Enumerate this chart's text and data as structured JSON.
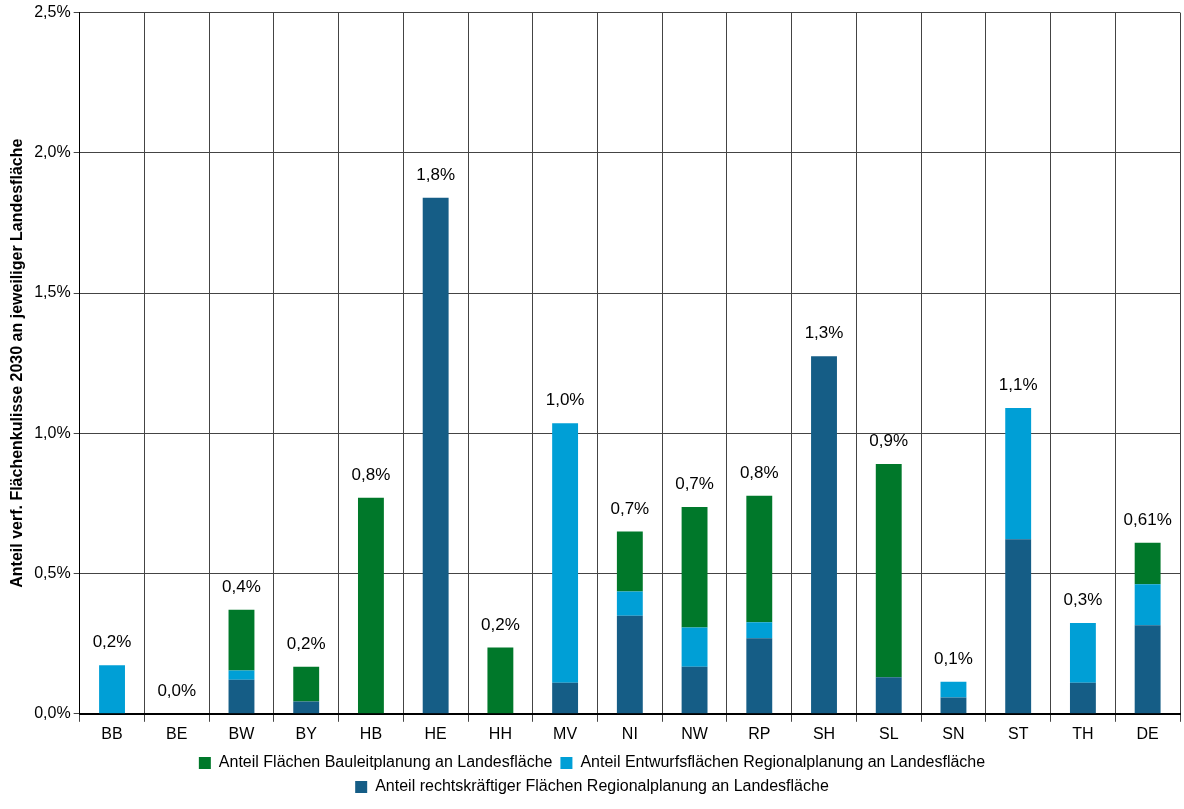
{
  "chart_data": {
    "type": "bar",
    "stacked": true,
    "ylabel": "Anteil verf. Flächenkulisse 2030 an jeweiliger Landesfläche",
    "categories": [
      "BB",
      "BE",
      "BW",
      "BY",
      "HB",
      "HE",
      "HH",
      "MV",
      "NI",
      "NW",
      "RP",
      "SH",
      "SL",
      "SN",
      "ST",
      "TH",
      "DE"
    ],
    "series": [
      {
        "name": "Anteil rechtskräftiger Flächen Regionalplanung an Landesfläche",
        "color": "#155d86",
        "values": [
          0,
          0,
          0.121,
          0.044,
          0,
          1.84,
          0,
          0.111,
          0.35,
          0.168,
          0.269,
          1.275,
          0.13,
          0.058,
          0.622,
          0.111,
          0.316
        ]
      },
      {
        "name": "Anteil Entwurfsflächen Regionalplanung an Landesfläche",
        "color": "#009fd6",
        "values": [
          0.173,
          0,
          0.033,
          0,
          0,
          0,
          0,
          0.925,
          0.086,
          0.14,
          0.057,
          0,
          0,
          0.056,
          0.468,
          0.213,
          0.146
        ]
      },
      {
        "name": "Anteil Flächen Bauleitplanung an Landesfläche",
        "color": "#00782a",
        "values": [
          0,
          0,
          0.217,
          0.124,
          0.77,
          0,
          0.236,
          0,
          0.214,
          0.429,
          0.451,
          0,
          0.761,
          0,
          0,
          0,
          0.148
        ]
      }
    ],
    "totals": [
      "0,2%",
      "0,0%",
      "0,4%",
      "0,2%",
      "0,8%",
      "1,8%",
      "0,2%",
      "1,0%",
      "0,7%",
      "0,7%",
      "0,8%",
      "1,3%",
      "0,9%",
      "0,1%",
      "1,1%",
      "0,3%",
      "0,61%"
    ],
    "ylim": [
      0,
      2.5
    ],
    "yticks": [
      {
        "value": 0,
        "label": "0,0%"
      },
      {
        "value": 0.5,
        "label": "0,5%"
      },
      {
        "value": 1,
        "label": "1,0%"
      },
      {
        "value": 1.5,
        "label": "1,5%"
      },
      {
        "value": 2,
        "label": "2,0%"
      },
      {
        "value": 2.5,
        "label": "2,5%"
      }
    ],
    "grid": true,
    "legend": "bottom"
  }
}
